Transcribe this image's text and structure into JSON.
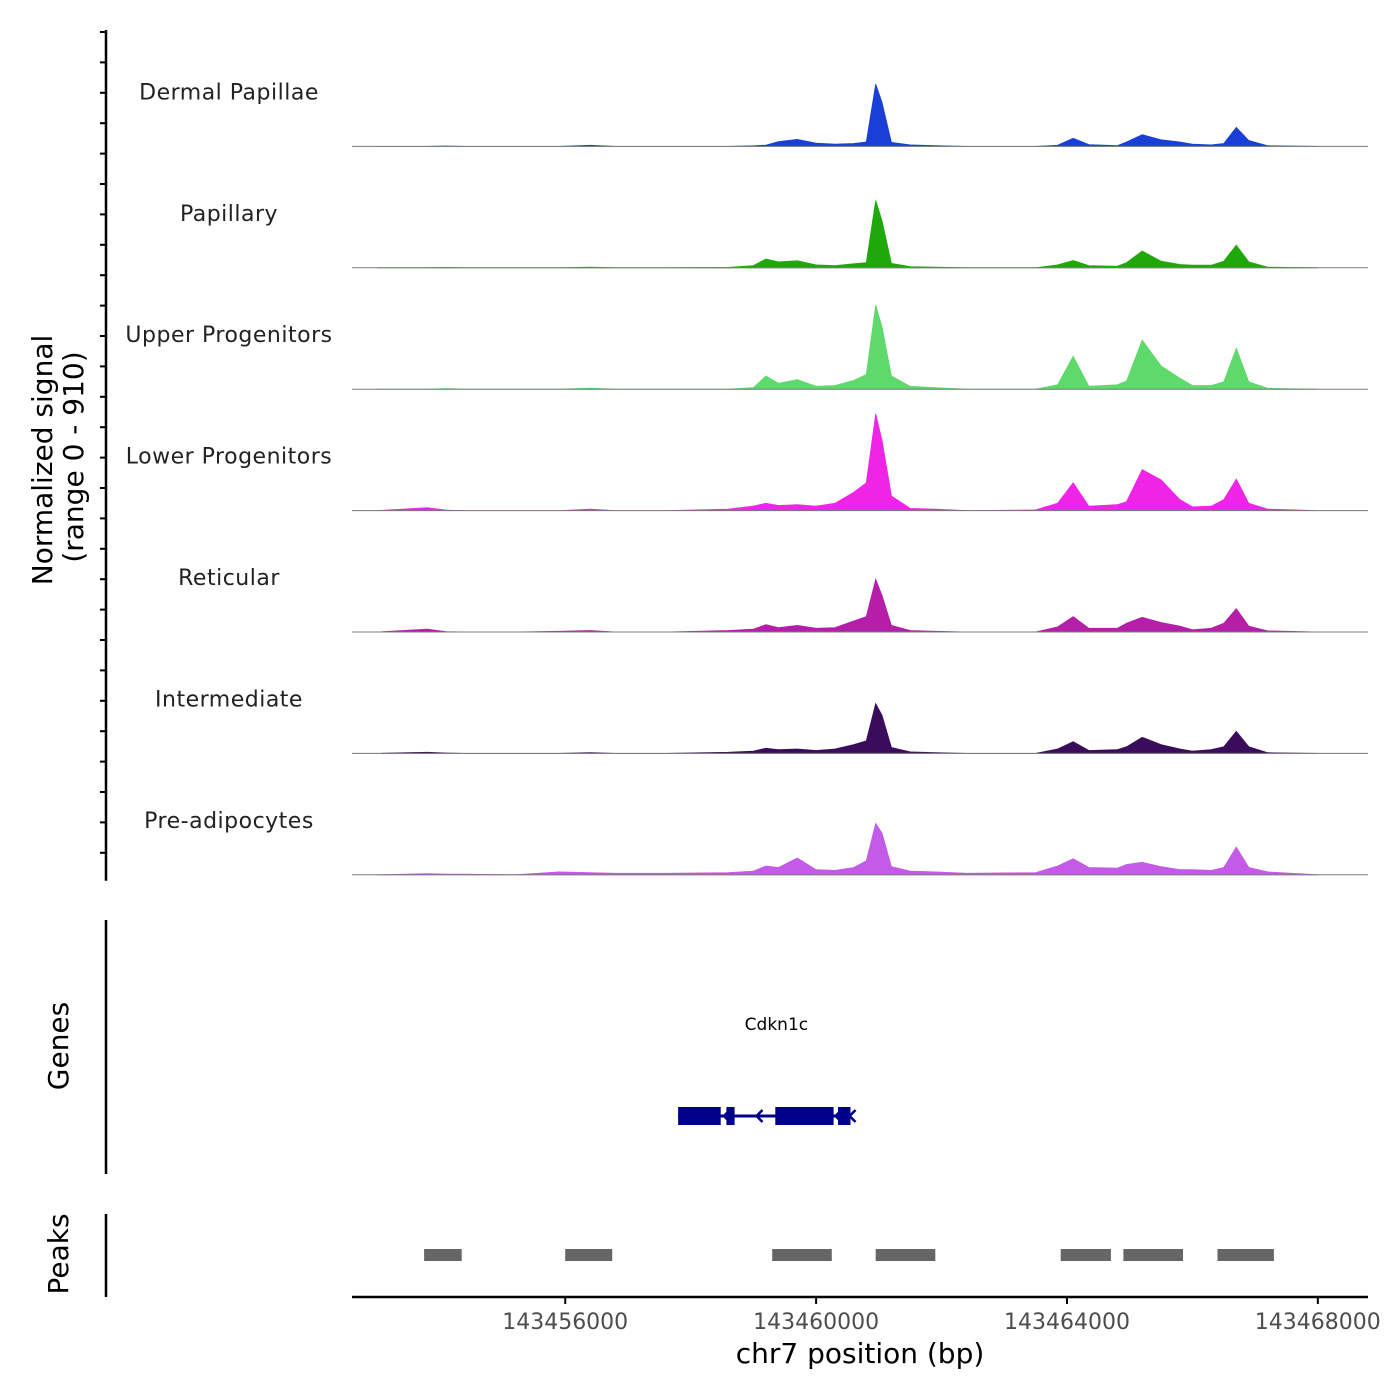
{
  "chart_data": {
    "type": "area",
    "title": "",
    "coverage": {
      "ylabel_line1": "Normalized signal",
      "ylabel_line2": "(range 0 - 910)",
      "yrange": [
        0,
        910
      ],
      "x": [
        143453000,
        143453800,
        143454100,
        143454400,
        143455200,
        143455900,
        143456400,
        143456800,
        143457600,
        143458600,
        143459000,
        143459200,
        143459400,
        143459700,
        143460000,
        143460300,
        143460600,
        143460800,
        143460950,
        143461050,
        143461200,
        143461500,
        143461900,
        143462400,
        143463500,
        143463850,
        143464100,
        143464350,
        143464800,
        143464950,
        143465200,
        143465500,
        143465800,
        143466000,
        143466300,
        143466500,
        143466700,
        143466900,
        143467200,
        143468000
      ],
      "tracks": [
        {
          "name": "Dermal Papillae",
          "color": "#1a3fd6",
          "values": [
            0,
            0,
            6,
            0,
            0,
            0,
            15,
            0,
            0,
            0,
            8,
            18,
            65,
            95,
            45,
            30,
            40,
            60,
            850,
            600,
            55,
            20,
            10,
            0,
            0,
            15,
            110,
            25,
            10,
            60,
            160,
            90,
            60,
            30,
            20,
            40,
            260,
            80,
            10,
            0
          ]
        },
        {
          "name": "Papillary",
          "color": "#1fa80a",
          "values": [
            0,
            0,
            5,
            0,
            0,
            0,
            10,
            0,
            0,
            5,
            30,
            120,
            80,
            95,
            40,
            30,
            55,
            70,
            920,
            640,
            60,
            15,
            10,
            0,
            0,
            40,
            100,
            30,
            20,
            70,
            230,
            90,
            45,
            35,
            35,
            90,
            310,
            80,
            10,
            0
          ]
        },
        {
          "name": "Upper Progenitors",
          "color": "#5ed96b",
          "values": [
            0,
            0,
            10,
            0,
            0,
            0,
            15,
            0,
            0,
            0,
            20,
            180,
            80,
            130,
            40,
            50,
            120,
            200,
            1150,
            850,
            180,
            40,
            20,
            0,
            0,
            60,
            450,
            40,
            60,
            110,
            670,
            320,
            150,
            50,
            50,
            100,
            560,
            100,
            12,
            0
          ]
        },
        {
          "name": "Lower Progenitors",
          "color": "#f024e6",
          "values": [
            0,
            40,
            5,
            0,
            0,
            0,
            20,
            0,
            0,
            20,
            60,
            100,
            70,
            80,
            60,
            100,
            250,
            380,
            1320,
            960,
            200,
            30,
            20,
            0,
            10,
            100,
            380,
            60,
            80,
            120,
            560,
            420,
            150,
            50,
            60,
            150,
            430,
            100,
            20,
            0
          ]
        },
        {
          "name": "Reticular",
          "color": "#b51ea8",
          "values": [
            0,
            40,
            5,
            0,
            0,
            10,
            20,
            0,
            0,
            20,
            40,
            100,
            60,
            90,
            50,
            60,
            150,
            210,
            720,
            500,
            90,
            20,
            10,
            0,
            0,
            70,
            210,
            50,
            50,
            120,
            200,
            130,
            80,
            30,
            50,
            120,
            320,
            80,
            15,
            0
          ]
        },
        {
          "name": "Intermediate",
          "color": "#3a0d5c",
          "values": [
            0,
            15,
            5,
            0,
            0,
            0,
            10,
            0,
            0,
            15,
            30,
            70,
            50,
            60,
            40,
            60,
            120,
            170,
            680,
            520,
            80,
            20,
            10,
            0,
            0,
            60,
            160,
            40,
            50,
            90,
            220,
            120,
            60,
            30,
            50,
            90,
            300,
            90,
            10,
            0
          ]
        },
        {
          "name": "Pre-adipocytes",
          "color": "#c45ae8",
          "values": [
            0,
            15,
            10,
            10,
            0,
            40,
            30,
            20,
            20,
            30,
            50,
            120,
            100,
            230,
            70,
            60,
            100,
            190,
            700,
            570,
            110,
            50,
            40,
            20,
            30,
            120,
            220,
            100,
            90,
            140,
            170,
            110,
            70,
            70,
            60,
            100,
            380,
            100,
            40,
            0
          ]
        }
      ]
    },
    "genes": {
      "ylabel": "Genes",
      "gene_name": "Cdkn1c",
      "strand": "-",
      "color": "#00008b",
      "gene_start": 143457800,
      "gene_end": 143460550,
      "exons": [
        [
          143457800,
          143458480
        ],
        [
          143458570,
          143458700
        ],
        [
          143459350,
          143460280
        ],
        [
          143460350,
          143460550
        ]
      ]
    },
    "peaks": {
      "ylabel": "Peaks",
      "color": "#666666",
      "regions": [
        [
          143453750,
          143454350
        ],
        [
          143456000,
          143456750
        ],
        [
          143459300,
          143460250
        ],
        [
          143460950,
          143461900
        ],
        [
          143463900,
          143464700
        ],
        [
          143464900,
          143465850
        ],
        [
          143466400,
          143467300
        ]
      ]
    },
    "xaxis": {
      "xlabel": "chr7 position (bp)",
      "xlim": [
        143452600,
        143468800
      ],
      "ticks": [
        143456000,
        143460000,
        143464000,
        143468000
      ],
      "tick_labels": [
        "143456000",
        "143460000",
        "143464000",
        "143468000"
      ]
    }
  }
}
